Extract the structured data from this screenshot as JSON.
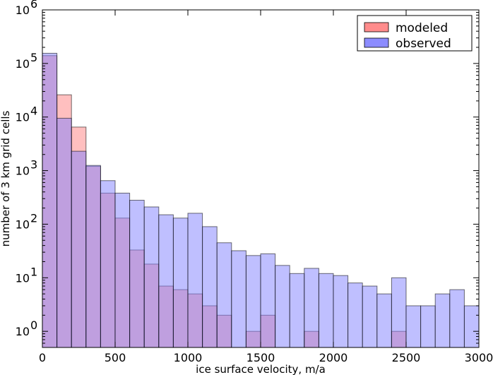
{
  "chart_data": {
    "type": "bar",
    "subtype": "overlaid-histogram",
    "title": "",
    "xlabel": "ice surface velocity, m/a",
    "ylabel": "number of 3 km grid cells",
    "xlim": [
      0,
      3000
    ],
    "ylim": [
      0.5,
      1000000
    ],
    "yscale": "log",
    "grid": false,
    "legend_position": "top-right",
    "bin_width": 100,
    "bin_starts": [
      0,
      100,
      200,
      300,
      400,
      500,
      600,
      700,
      800,
      900,
      1000,
      1100,
      1200,
      1300,
      1400,
      1500,
      1600,
      1700,
      1800,
      1900,
      2000,
      2100,
      2200,
      2300,
      2400,
      2500,
      2600,
      2700,
      2800,
      2900
    ],
    "x_ticks": [
      {
        "value": 0,
        "label": "0"
      },
      {
        "value": 500,
        "label": "500"
      },
      {
        "value": 1000,
        "label": "1000"
      },
      {
        "value": 1500,
        "label": "1500"
      },
      {
        "value": 2000,
        "label": "2000"
      },
      {
        "value": 2500,
        "label": "2500"
      },
      {
        "value": 3000,
        "label": "3000"
      }
    ],
    "y_ticks": [
      {
        "value": 1,
        "base": "10",
        "exp": "0"
      },
      {
        "value": 10,
        "base": "10",
        "exp": "1"
      },
      {
        "value": 100,
        "base": "10",
        "exp": "2"
      },
      {
        "value": 1000,
        "base": "10",
        "exp": "3"
      },
      {
        "value": 10000,
        "base": "10",
        "exp": "4"
      },
      {
        "value": 100000,
        "base": "10",
        "exp": "5"
      },
      {
        "value": 1000000,
        "base": "10",
        "exp": "6"
      }
    ],
    "series": [
      {
        "name": "modeled",
        "color": "#ff7f7f",
        "values": [
          140000,
          26000,
          6500,
          1200,
          380,
          130,
          33,
          18,
          7,
          6,
          5,
          3,
          2,
          0,
          1,
          2,
          0,
          0,
          1,
          0,
          0,
          0,
          0,
          0,
          1,
          0,
          0,
          0,
          0,
          0
        ]
      },
      {
        "name": "observed",
        "color": "#7f7fff",
        "values": [
          155000,
          9500,
          2300,
          1250,
          650,
          380,
          280,
          210,
          150,
          130,
          160,
          90,
          45,
          32,
          26,
          28,
          17,
          12,
          15,
          12,
          11,
          8,
          7,
          5,
          10,
          3,
          3,
          5,
          6,
          3
        ]
      }
    ]
  }
}
